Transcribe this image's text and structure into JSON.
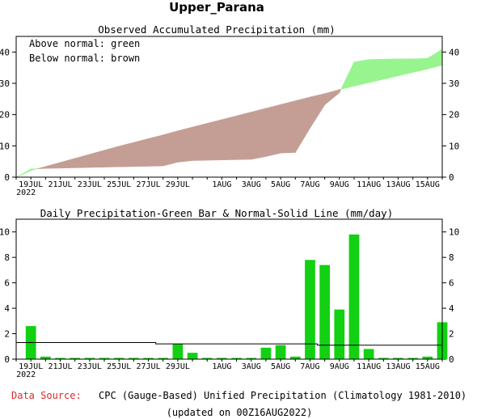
{
  "title": "Upper_Parana",
  "chart_data": [
    {
      "type": "area",
      "title": "Observed Accumulated Precipitation (mm)",
      "annotations": [
        "Above normal: green",
        "Below normal: brown"
      ],
      "colors": {
        "above": "#98f48f",
        "below": "#c49e94"
      },
      "x_start_day": 18,
      "x_days": 29,
      "ylim": [
        0,
        45
      ],
      "yticks": [
        0,
        10,
        20,
        30,
        40
      ],
      "xtick_labels": [
        {
          "day": 1,
          "label": "19JUL",
          "sub": "2022"
        },
        {
          "day": 3,
          "label": "21JUL"
        },
        {
          "day": 5,
          "label": "23JUL"
        },
        {
          "day": 7,
          "label": "25JUL"
        },
        {
          "day": 9,
          "label": "27JUL"
        },
        {
          "day": 11,
          "label": "29JUL"
        },
        {
          "day": 14,
          "label": "1AUG"
        },
        {
          "day": 16,
          "label": "3AUG"
        },
        {
          "day": 18,
          "label": "5AUG"
        },
        {
          "day": 20,
          "label": "7AUG"
        },
        {
          "day": 22,
          "label": "9AUG"
        },
        {
          "day": 24,
          "label": "11AUG"
        },
        {
          "day": 26,
          "label": "13AUG"
        },
        {
          "day": 28,
          "label": "15AUG"
        }
      ],
      "series": [
        {
          "values": [
            0,
            2.6,
            2.8,
            2.9,
            3.0,
            3.1,
            3.2,
            3.3,
            3.4,
            3.5,
            3.6,
            4.8,
            5.3,
            5.4,
            5.5,
            5.6,
            5.7,
            6.6,
            7.7,
            7.9,
            15.7,
            23.1,
            27.0,
            36.8,
            37.6,
            37.7,
            37.8,
            37.8,
            38.0,
            40.9
          ]
        },
        {
          "values": [
            0,
            2.1,
            3.4,
            4.7,
            6.0,
            7.3,
            8.6,
            9.9,
            11.1,
            12.3,
            13.5,
            14.8,
            16.0,
            17.2,
            18.4,
            19.6,
            20.8,
            22.0,
            23.2,
            24.4,
            25.6,
            26.7,
            28.0,
            29.1,
            30.2,
            31.3,
            32.4,
            33.5,
            34.6,
            35.8
          ]
        }
      ]
    },
    {
      "type": "bar",
      "title": "Daily Precipitation-Green Bar & Normal-Solid Line (mm/day)",
      "colors": {
        "bar": "#12d012"
      },
      "x_start_day": 18,
      "x_days": 29,
      "ylim": [
        0,
        11
      ],
      "yticks": [
        0,
        2,
        4,
        6,
        8,
        10
      ],
      "xtick_labels": [
        {
          "day": 1,
          "label": "19JUL",
          "sub": "2022"
        },
        {
          "day": 3,
          "label": "21JUL"
        },
        {
          "day": 5,
          "label": "23JUL"
        },
        {
          "day": 7,
          "label": "25JUL"
        },
        {
          "day": 9,
          "label": "27JUL"
        },
        {
          "day": 11,
          "label": "29JUL"
        },
        {
          "day": 14,
          "label": "1AUG"
        },
        {
          "day": 16,
          "label": "3AUG"
        },
        {
          "day": 18,
          "label": "5AUG"
        },
        {
          "day": 20,
          "label": "7AUG"
        },
        {
          "day": 22,
          "label": "9AUG"
        },
        {
          "day": 24,
          "label": "11AUG"
        },
        {
          "day": 26,
          "label": "13AUG"
        },
        {
          "day": 28,
          "label": "15AUG"
        }
      ],
      "series": [
        {
          "values": [
            2.6,
            0.2,
            0.1,
            0.1,
            0.1,
            0.1,
            0.1,
            0.1,
            0.1,
            0.1,
            1.2,
            0.5,
            0.1,
            0.1,
            0.1,
            0.1,
            0.9,
            1.1,
            0.2,
            7.8,
            7.4,
            3.9,
            9.8,
            0.8,
            0.1,
            0.1,
            0.1,
            0.2,
            2.9
          ]
        },
        {
          "values": [
            1.3,
            1.3,
            1.3,
            1.3,
            1.3,
            1.3,
            1.3,
            1.3,
            1.3,
            1.2,
            1.2,
            1.2,
            1.2,
            1.2,
            1.2,
            1.2,
            1.2,
            1.2,
            1.2,
            1.2,
            1.1,
            1.1,
            1.1,
            1.1,
            1.1,
            1.1,
            1.1,
            1.1,
            1.1
          ]
        }
      ]
    }
  ],
  "footer": {
    "source_label": "Data Source:",
    "source_text": "CPC (Gauge-Based) Unified Precipitation (Climatology 1981-2010)",
    "updated": "(updated on 00Z16AUG2022)"
  }
}
